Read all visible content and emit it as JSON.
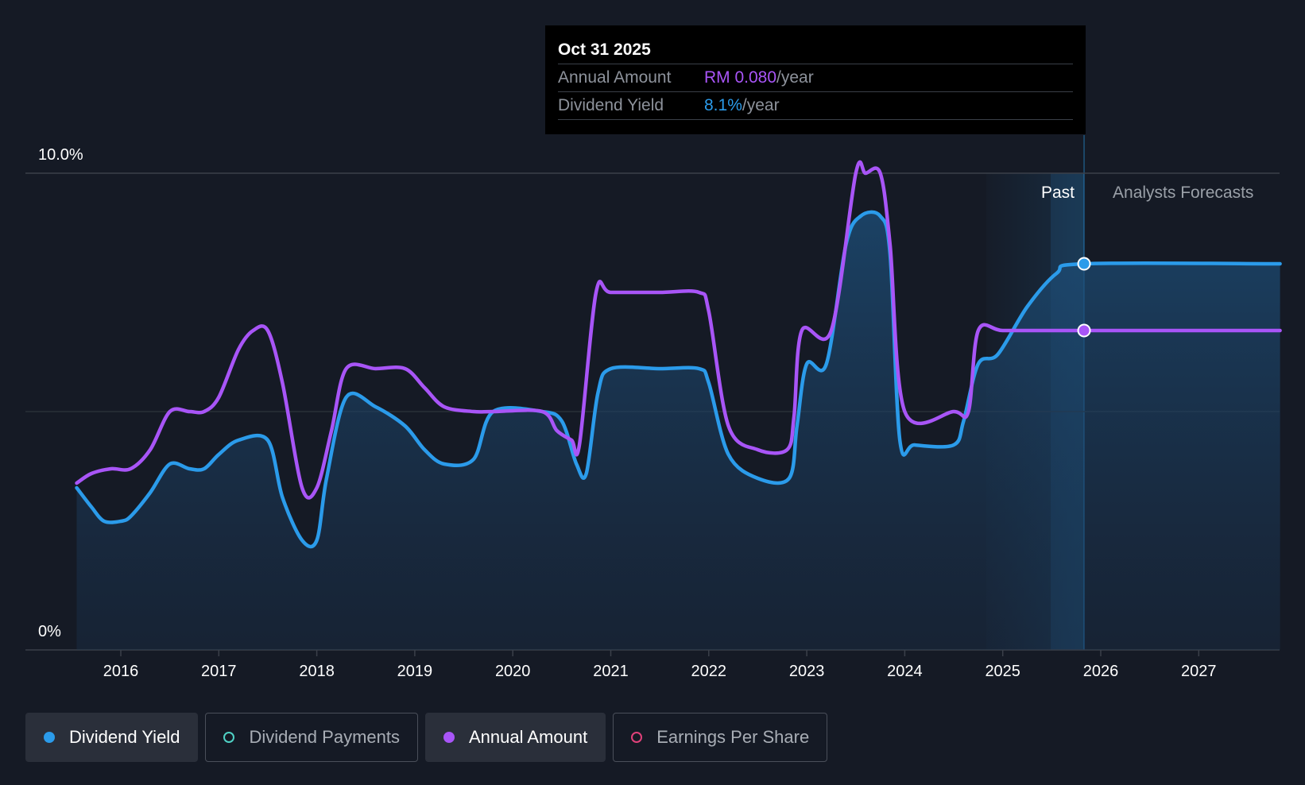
{
  "chart_data": {
    "type": "line",
    "y_ticks": [
      "10.0%",
      "0%"
    ],
    "ylim": [
      0,
      10
    ],
    "xlim": [
      2015.5,
      2027.83
    ],
    "x_ticks": [
      2016,
      2017,
      2018,
      2019,
      2020,
      2021,
      2022,
      2023,
      2024,
      2025,
      2026,
      2027
    ],
    "x_tick_labels": [
      "2016",
      "2017",
      "2018",
      "2019",
      "2020",
      "2021",
      "2022",
      "2023",
      "2024",
      "2025",
      "2026",
      "2027"
    ],
    "past_start": 2024.83,
    "forecast_start": 2025.83,
    "region_labels": {
      "past": "Past",
      "forecast": "Analysts Forecasts"
    },
    "series": [
      {
        "name": "Dividend Yield",
        "color": "#2b9bea",
        "filled": true,
        "x": [
          2015.55,
          2015.7,
          2015.83,
          2016.0,
          2016.1,
          2016.3,
          2016.5,
          2016.7,
          2016.85,
          2017.0,
          2017.2,
          2017.5,
          2017.65,
          2017.85,
          2018.0,
          2018.1,
          2018.3,
          2018.6,
          2018.9,
          2019.1,
          2019.3,
          2019.6,
          2019.8,
          2020.3,
          2020.5,
          2020.65,
          2020.75,
          2020.87,
          2021.0,
          2021.5,
          2021.9,
          2022.0,
          2022.2,
          2022.5,
          2022.82,
          2022.9,
          2023.0,
          2023.2,
          2023.4,
          2023.55,
          2023.75,
          2023.85,
          2023.95,
          2024.1,
          2024.5,
          2024.6,
          2024.75,
          2024.95,
          2025.25,
          2025.55,
          2025.83,
          2027.83
        ],
        "values": [
          3.4,
          3.0,
          2.7,
          2.7,
          2.8,
          3.3,
          3.9,
          3.8,
          3.8,
          4.1,
          4.4,
          4.4,
          3.2,
          2.3,
          2.3,
          3.6,
          5.3,
          5.1,
          4.7,
          4.2,
          3.9,
          4.0,
          5.0,
          5.0,
          4.8,
          3.9,
          3.7,
          5.4,
          5.9,
          5.9,
          5.9,
          5.6,
          4.1,
          3.6,
          3.6,
          4.7,
          6.0,
          6.0,
          8.5,
          9.1,
          9.1,
          8.3,
          4.4,
          4.3,
          4.3,
          4.8,
          6.0,
          6.2,
          7.2,
          7.9,
          8.1,
          8.1
        ]
      },
      {
        "name": "Annual Amount",
        "color": "#a855f7",
        "filled": false,
        "x": [
          2015.55,
          2015.7,
          2015.9,
          2016.1,
          2016.3,
          2016.5,
          2016.7,
          2016.85,
          2017.0,
          2017.2,
          2017.35,
          2017.5,
          2017.65,
          2017.85,
          2018.0,
          2018.15,
          2018.3,
          2018.6,
          2018.9,
          2019.1,
          2019.3,
          2019.6,
          2019.8,
          2020.3,
          2020.45,
          2020.6,
          2020.68,
          2020.85,
          2021.0,
          2021.5,
          2021.9,
          2022.0,
          2022.2,
          2022.5,
          2022.8,
          2022.87,
          2022.95,
          2023.25,
          2023.5,
          2023.6,
          2023.75,
          2023.85,
          2024.0,
          2024.5,
          2024.65,
          2024.75,
          2025.0,
          2025.5,
          2025.83,
          2027.83
        ],
        "values": [
          3.5,
          3.7,
          3.8,
          3.8,
          4.2,
          5.0,
          5.0,
          5.0,
          5.3,
          6.3,
          6.7,
          6.7,
          5.6,
          3.4,
          3.4,
          4.6,
          5.9,
          5.9,
          5.9,
          5.5,
          5.1,
          5.0,
          5.0,
          5.0,
          4.6,
          4.4,
          4.3,
          7.5,
          7.5,
          7.5,
          7.5,
          7.1,
          4.7,
          4.2,
          4.2,
          4.9,
          6.7,
          6.7,
          10.0,
          10.0,
          10.0,
          8.5,
          5.0,
          5.0,
          5.0,
          6.7,
          6.7,
          6.7,
          6.7,
          6.7
        ]
      }
    ],
    "highlight_x": 2025.83,
    "highlight_points": [
      {
        "series": "Dividend Yield",
        "x": 2025.83,
        "y": 8.1
      },
      {
        "series": "Annual Amount",
        "x": 2025.83,
        "y": 6.7
      }
    ]
  },
  "tooltip": {
    "date": "Oct 31 2025",
    "rows": [
      {
        "label": "Annual Amount",
        "value": "RM 0.080",
        "unit": "/year"
      },
      {
        "label": "Dividend Yield",
        "value": "8.1%",
        "unit": "/year"
      }
    ]
  },
  "legend": [
    {
      "label": "Dividend Yield",
      "color": "#2b9bea",
      "active": true,
      "hollow": false
    },
    {
      "label": "Dividend Payments",
      "color": "#4fd1c5",
      "active": false,
      "hollow": true
    },
    {
      "label": "Annual Amount",
      "color": "#a855f7",
      "active": true,
      "hollow": false
    },
    {
      "label": "Earnings Per Share",
      "color": "#e0417a",
      "active": false,
      "hollow": true
    }
  ]
}
